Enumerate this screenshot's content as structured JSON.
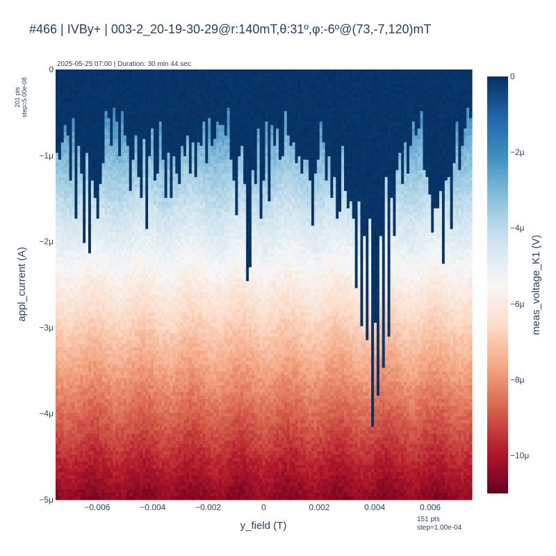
{
  "title": "#466 | IVBy+ | 003-2_20-19-30-29@r:140mT,θ:31º,φ:-6º@(73,-7,120)mT",
  "subtitle": "2025-05-25 07:00 | Duration: 30 min 44 sec",
  "y_points_note": [
    "201 pts",
    "step=5.00e-08"
  ],
  "x_points_note": [
    "151 pts",
    "step=1.00e-04"
  ],
  "chart_data": {
    "type": "heatmap",
    "xlabel": "y_field (T)",
    "ylabel": "appl_current (A)",
    "colorbar_label": "meas_voltage_K1 (V)",
    "colorscale": "RdBu",
    "x_range": [
      -0.0075,
      0.0075
    ],
    "y_range": [
      -5e-06,
      0
    ],
    "x_points": 151,
    "x_step": 0.0001,
    "y_points": 201,
    "y_step": 5e-08,
    "z_range": [
      -1.1e-05,
      0
    ],
    "x_ticks": [
      {
        "value": -0.006,
        "label": "−0.006"
      },
      {
        "value": -0.004,
        "label": "−0.004"
      },
      {
        "value": -0.002,
        "label": "−0.002"
      },
      {
        "value": 0,
        "label": "0"
      },
      {
        "value": 0.002,
        "label": "0.002"
      },
      {
        "value": 0.004,
        "label": "0.004"
      },
      {
        "value": 0.006,
        "label": "0.006"
      }
    ],
    "y_ticks": [
      {
        "value": 0,
        "label": "0"
      },
      {
        "value": -1e-06,
        "label": "−1μ"
      },
      {
        "value": -2e-06,
        "label": "−2μ"
      },
      {
        "value": -3e-06,
        "label": "−3μ"
      },
      {
        "value": -4e-06,
        "label": "−4μ"
      },
      {
        "value": -5e-06,
        "label": "−5μ"
      }
    ],
    "colorbar_ticks": [
      {
        "value": 0,
        "label": "0"
      },
      {
        "value": -2e-06,
        "label": "−2μ"
      },
      {
        "value": -4e-06,
        "label": "−4μ"
      },
      {
        "value": -6e-06,
        "label": "−6μ"
      },
      {
        "value": -8e-06,
        "label": "−8μ"
      },
      {
        "value": -1e-05,
        "label": "−10μ"
      }
    ],
    "colors": {
      "dark_red": "#67001f",
      "red": "#b2182b",
      "salmon": "#d6604d",
      "peach": "#f4a582",
      "light_peach": "#fddbc7",
      "white": "#f7f7f7",
      "light_blue": "#d1e5f0",
      "sky": "#92c5de",
      "blue": "#4393c3",
      "mid_blue": "#2166ac",
      "navy": "#053061"
    },
    "switching_current_columns": {
      "description": "per-column switching current (A) where the voltage jumps from ~0 to resistive; columns step 1.00e-04 T from -0.0075 T",
      "x_start": -0.0075,
      "x_step": 0.0001,
      "values": [
        -9.5e-07,
        -1.05e-06,
        -8.5e-07,
        -6.5e-07,
        -7.5e-07,
        -1.3e-06,
        -5.5e-07,
        -1.75e-06,
        -9e-07,
        -1.2e-06,
        -2e-06,
        -9.5e-07,
        -2.15e-06,
        -1.3e-06,
        -1.5e-06,
        -1.75e-06,
        -1.35e-06,
        -1.1e-06,
        -5e-07,
        -5.5e-07,
        -9e-07,
        -4.5e-07,
        -6e-07,
        -1e-06,
        -5e-07,
        -7.5e-07,
        -9e-07,
        -1.4e-06,
        -1.05e-06,
        -7.5e-07,
        -1.25e-06,
        -1.5e-06,
        -8e-07,
        -1.85e-06,
        -1e-06,
        -7e-07,
        -1.3e-06,
        -1.2e-06,
        -6e-07,
        -1.05e-06,
        -1.5e-06,
        -9.5e-07,
        -1.5e-06,
        -1e-06,
        -1.2e-06,
        -1.35e-06,
        -9e-07,
        -1e-06,
        -7.5e-07,
        -1.2e-06,
        -8.5e-07,
        -1.25e-06,
        -8.5e-07,
        -9e-07,
        -6e-07,
        -1.1e-06,
        -5.5e-07,
        -9e-07,
        -8e-07,
        -6e-07,
        -6.5e-07,
        -6.5e-07,
        -7.5e-07,
        -4.5e-07,
        -1.05e-06,
        -1.3e-06,
        -1.7e-06,
        -1e-06,
        -9e-07,
        -1.35e-06,
        -2.45e-06,
        -2.3e-06,
        -1.15e-06,
        -1.35e-06,
        -7e-07,
        -1.75e-06,
        -1.3e-06,
        -6e-07,
        -1.55e-06,
        -6.5e-07,
        -9e-07,
        -7e-07,
        -1.05e-06,
        -1e-06,
        -5e-07,
        -7.5e-07,
        -9e-07,
        -8.5e-07,
        -1.1e-06,
        -1e-06,
        -1.2e-06,
        -1.05e-06,
        -1.05e-06,
        -1.3e-06,
        -1.8e-06,
        -1.2e-06,
        -1.05e-06,
        -6e-07,
        -8.5e-07,
        -1.3e-06,
        -1e-06,
        -1.5e-06,
        -1.25e-06,
        -1.75e-06,
        -1.65e-06,
        -9e-07,
        -1.4e-06,
        -1.6e-06,
        -1.55e-06,
        -1.75e-06,
        -2.55e-06,
        -1.55e-06,
        -3e-06,
        -1.95e-06,
        -3.15e-06,
        -1.75e-06,
        -4.15e-06,
        -2.95e-06,
        -3.8e-06,
        -1.95e-06,
        -3.45e-06,
        -1.25e-06,
        -3.1e-06,
        -1.5e-06,
        -1.95e-06,
        -1.15e-06,
        -9.5e-07,
        -1.35e-06,
        -8.5e-07,
        -1.2e-06,
        -9e-07,
        -6e-07,
        -7.5e-07,
        -7e-07,
        -5e-07,
        -1.15e-06,
        -1.25e-06,
        -1.45e-06,
        -1.9e-06,
        -1.6e-06,
        -1.6e-06,
        -1.4e-06,
        -2.25e-06,
        -1.3e-06,
        -1.25e-06,
        -1.85e-06,
        -1.1e-06,
        -6e-07,
        -1.15e-06,
        -9e-07,
        -7e-07,
        -4.5e-07,
        -5.5e-07
      ]
    },
    "resistive_profile": "above the switching current the voltage is ~0 V; below it the voltage falls roughly linearly with current, reaching ~-2 μV at -1 μA, ~-6 μV near -3 μA and ~-10.5 μV at -5 μA"
  }
}
